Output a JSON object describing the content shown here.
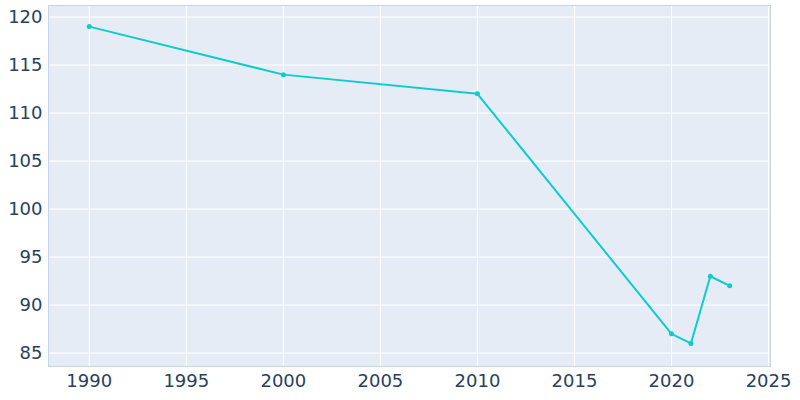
{
  "chart_data": {
    "type": "line",
    "x": [
      1990,
      2000,
      2010,
      2020,
      2021,
      2022,
      2023
    ],
    "values": [
      119,
      114,
      112,
      87,
      86,
      93,
      92
    ],
    "color": "#0fcccc",
    "marker": "circle",
    "xlim": [
      1987.9,
      2025.1
    ],
    "xticks": [
      1990,
      1995,
      2000,
      2005,
      2010,
      2015,
      2020,
      2025
    ],
    "ylim": [
      83.6,
      121.2
    ],
    "yticks": [
      85,
      90,
      95,
      100,
      105,
      110,
      115,
      120
    ],
    "grid": true
  }
}
